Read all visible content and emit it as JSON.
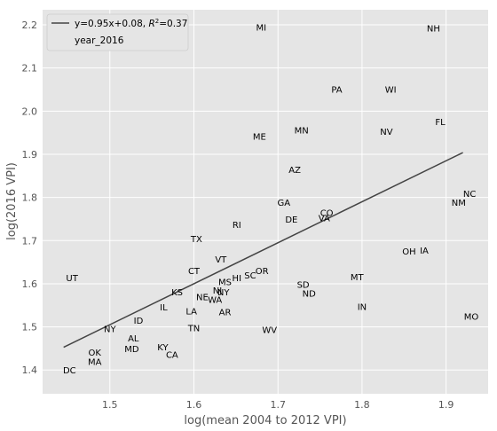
{
  "chart_data": {
    "type": "scatter",
    "xlabel": "log(mean 2004 to 2012 VPI)",
    "ylabel": "log(2016 VPI)",
    "xlim": [
      1.42,
      1.95
    ],
    "ylim": [
      1.345,
      2.235
    ],
    "xticks": [
      1.5,
      1.6,
      1.7,
      1.8,
      1.9
    ],
    "xtick_labels": [
      "1.5",
      "1.6",
      "1.7",
      "1.8",
      "1.9"
    ],
    "yticks": [
      1.4,
      1.5,
      1.6,
      1.7,
      1.8,
      1.9,
      2.0,
      2.1,
      2.2
    ],
    "ytick_labels": [
      "1.4",
      "1.5",
      "1.6",
      "1.7",
      "1.8",
      "1.9",
      "2.0",
      "2.1",
      "2.2"
    ],
    "grid": true,
    "legend_position": "top-left",
    "legend": [
      {
        "label": "y=0.95x+0.08, ",
        "label_r2": "R",
        "label_r2_sup": "2",
        "label_tail": "=0.37",
        "kind": "line"
      },
      {
        "label": "year_2016",
        "kind": "marker-none"
      }
    ],
    "fit_line": {
      "slope": 0.95,
      "intercept": 0.08,
      "x_range": [
        1.445,
        1.92
      ],
      "color": "#444444"
    },
    "series": [
      {
        "name": "year_2016",
        "points": [
          {
            "label": "MI",
            "x": 1.68,
            "y": 2.195
          },
          {
            "label": "NH",
            "x": 1.885,
            "y": 2.193
          },
          {
            "label": "PA",
            "x": 1.77,
            "y": 2.051
          },
          {
            "label": "WI",
            "x": 1.834,
            "y": 2.051
          },
          {
            "label": "FL",
            "x": 1.893,
            "y": 1.976
          },
          {
            "label": "MN",
            "x": 1.728,
            "y": 1.956
          },
          {
            "label": "NV",
            "x": 1.829,
            "y": 1.953
          },
          {
            "label": "ME",
            "x": 1.678,
            "y": 1.942
          },
          {
            "label": "AZ",
            "x": 1.72,
            "y": 1.865
          },
          {
            "label": "NC",
            "x": 1.928,
            "y": 1.81
          },
          {
            "label": "NM",
            "x": 1.915,
            "y": 1.789
          },
          {
            "label": "GA",
            "x": 1.707,
            "y": 1.789
          },
          {
            "label": "CO",
            "x": 1.758,
            "y": 1.765
          },
          {
            "label": "DE",
            "x": 1.716,
            "y": 1.75
          },
          {
            "label": "VA",
            "x": 1.755,
            "y": 1.753
          },
          {
            "label": "RI",
            "x": 1.651,
            "y": 1.738
          },
          {
            "label": "TX",
            "x": 1.603,
            "y": 1.705
          },
          {
            "label": "OH",
            "x": 1.856,
            "y": 1.676
          },
          {
            "label": "IA",
            "x": 1.874,
            "y": 1.678
          },
          {
            "label": "VT",
            "x": 1.632,
            "y": 1.657
          },
          {
            "label": "CT",
            "x": 1.6,
            "y": 1.631
          },
          {
            "label": "OR",
            "x": 1.681,
            "y": 1.631
          },
          {
            "label": "UT",
            "x": 1.455,
            "y": 1.614
          },
          {
            "label": "SC",
            "x": 1.667,
            "y": 1.62
          },
          {
            "label": "HI",
            "x": 1.651,
            "y": 1.614
          },
          {
            "label": "MT",
            "x": 1.794,
            "y": 1.616
          },
          {
            "label": "MS",
            "x": 1.637,
            "y": 1.605
          },
          {
            "label": "SD",
            "x": 1.73,
            "y": 1.599
          },
          {
            "label": "KS",
            "x": 1.58,
            "y": 1.581
          },
          {
            "label": "NJ",
            "x": 1.628,
            "y": 1.585
          },
          {
            "label": "NY",
            "x": 1.635,
            "y": 1.581
          },
          {
            "label": "ND",
            "x": 1.737,
            "y": 1.578
          },
          {
            "label": "NE",
            "x": 1.61,
            "y": 1.57
          },
          {
            "label": "WA",
            "x": 1.625,
            "y": 1.564
          },
          {
            "label": "IL",
            "x": 1.564,
            "y": 1.546
          },
          {
            "label": "IN",
            "x": 1.8,
            "y": 1.547
          },
          {
            "label": "LA",
            "x": 1.597,
            "y": 1.537
          },
          {
            "label": "AR",
            "x": 1.637,
            "y": 1.535
          },
          {
            "label": "MO",
            "x": 1.93,
            "y": 1.525
          },
          {
            "label": "ID",
            "x": 1.534,
            "y": 1.516
          },
          {
            "label": "TN",
            "x": 1.6,
            "y": 1.498
          },
          {
            "label": "NY",
            "x": 1.5,
            "y": 1.496
          },
          {
            "label": "WV",
            "x": 1.69,
            "y": 1.494
          },
          {
            "label": "AL",
            "x": 1.528,
            "y": 1.475
          },
          {
            "label": "KY",
            "x": 1.563,
            "y": 1.454
          },
          {
            "label": "MD",
            "x": 1.526,
            "y": 1.45
          },
          {
            "label": "OK",
            "x": 1.482,
            "y": 1.442
          },
          {
            "label": "CA",
            "x": 1.574,
            "y": 1.436
          },
          {
            "label": "MA",
            "x": 1.482,
            "y": 1.42
          },
          {
            "label": "DC",
            "x": 1.452,
            "y": 1.4
          }
        ]
      }
    ]
  },
  "colors": {
    "plot_background": "#e5e5e5",
    "grid": "#ffffff",
    "fit_line": "#444444",
    "tick_text": "#555555"
  }
}
